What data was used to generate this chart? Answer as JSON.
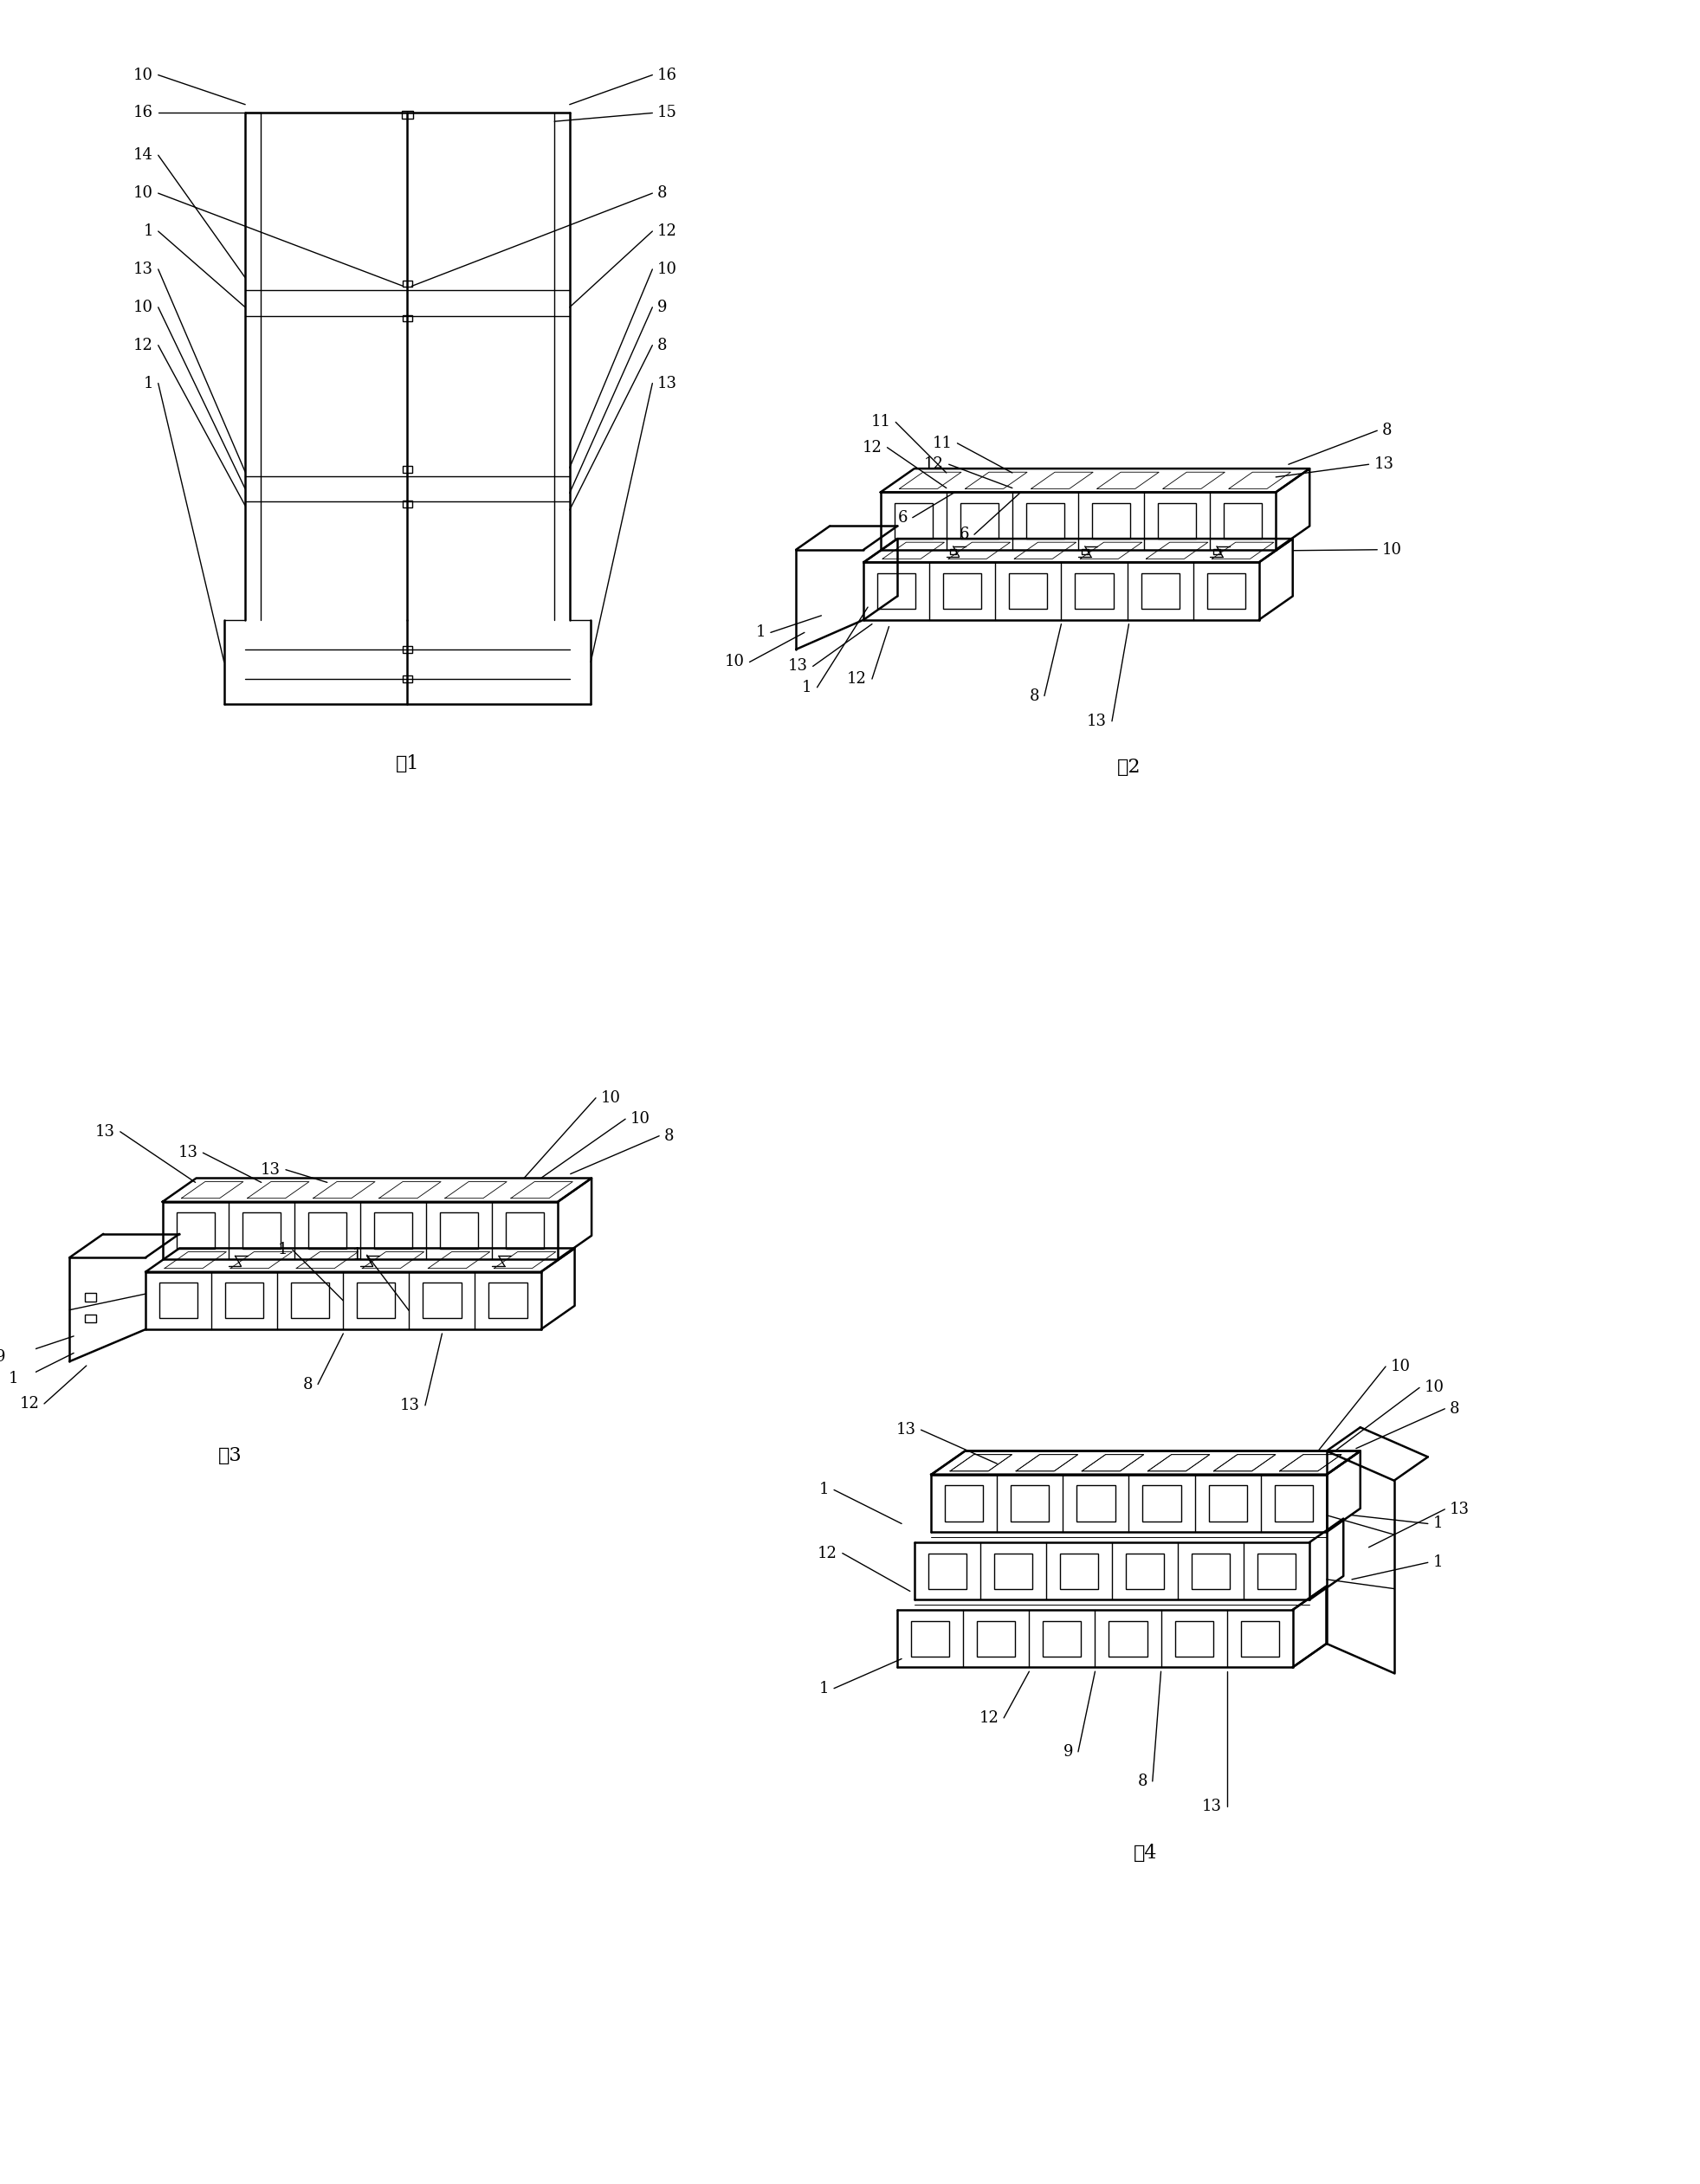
{
  "background_color": "#ffffff",
  "line_color": "#000000",
  "fig_labels": [
    "图1",
    "图2",
    "图3",
    "图4"
  ],
  "font_size_label": 16,
  "font_size_number": 13,
  "lw_main": 1.8,
  "lw_thin": 1.0,
  "lw_ref": 1.0
}
